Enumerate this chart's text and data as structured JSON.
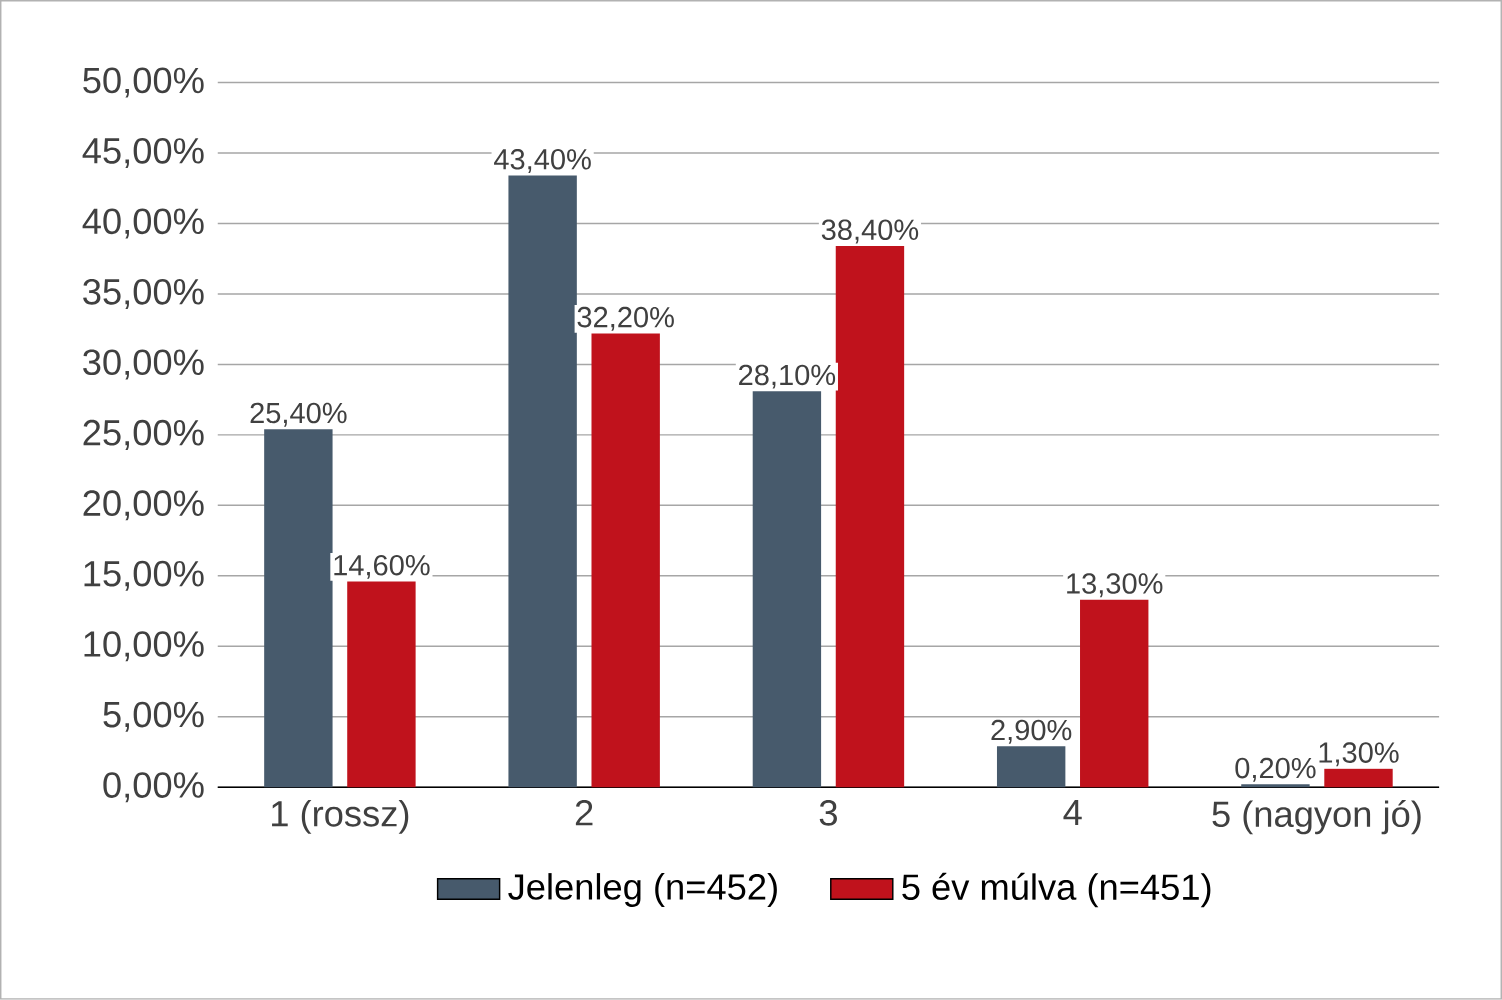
{
  "chart_data": {
    "type": "bar",
    "categories": [
      "1 (rossz)",
      "2",
      "3",
      "4",
      "5 (nagyon jó)"
    ],
    "series": [
      {
        "name": "Jelenleg (n=452)",
        "color": "#475a6c",
        "values": [
          25.4,
          43.4,
          28.1,
          2.9,
          0.2
        ],
        "value_labels": [
          "25,40%",
          "43,40%",
          "28,10%",
          "2,90%",
          "0,20%"
        ]
      },
      {
        "name": "5 év múlva (n=451)",
        "color": "#c0121c",
        "values": [
          14.6,
          32.2,
          38.4,
          13.3,
          1.3
        ],
        "value_labels": [
          "14,60%",
          "32,20%",
          "38,40%",
          "13,30%",
          "1,30%"
        ]
      }
    ],
    "ylim": [
      0,
      50
    ],
    "yticks": [
      {
        "value": 0,
        "label": "0,00%"
      },
      {
        "value": 5,
        "label": "5,00%"
      },
      {
        "value": 10,
        "label": "10,00%"
      },
      {
        "value": 15,
        "label": "15,00%"
      },
      {
        "value": 20,
        "label": "20,00%"
      },
      {
        "value": 25,
        "label": "25,00%"
      },
      {
        "value": 30,
        "label": "30,00%"
      },
      {
        "value": 35,
        "label": "35,00%"
      },
      {
        "value": 40,
        "label": "40,00%"
      },
      {
        "value": 45,
        "label": "45,00%"
      },
      {
        "value": 50,
        "label": "50,00%"
      }
    ],
    "grid": "y",
    "legend": "bottom"
  }
}
